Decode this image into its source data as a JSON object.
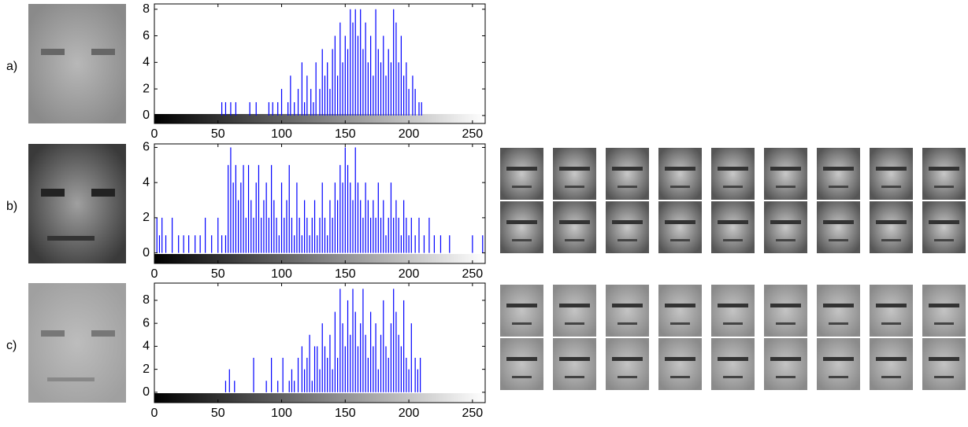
{
  "chart_data": [
    {
      "type": "bar",
      "panel_label": "a)",
      "color": "#0000ff",
      "x": [
        53,
        56,
        60,
        64,
        75,
        80,
        90,
        93,
        97,
        100,
        105,
        107,
        110,
        113,
        116,
        118,
        120,
        123,
        125,
        127,
        130,
        132,
        134,
        136,
        138,
        140,
        142,
        144,
        146,
        148,
        150,
        152,
        154,
        156,
        158,
        160,
        162,
        164,
        166,
        168,
        170,
        172,
        174,
        176,
        178,
        180,
        182,
        184,
        186,
        188,
        190,
        192,
        194,
        196,
        198,
        200,
        203,
        205,
        208,
        210
      ],
      "values": [
        1,
        1,
        1,
        1,
        1,
        1,
        1,
        1,
        1,
        2,
        1,
        3,
        1,
        2,
        4,
        1,
        3,
        2,
        1,
        4,
        2,
        5,
        3,
        4,
        2,
        5,
        6,
        3,
        7,
        4,
        6,
        5,
        8,
        7,
        8,
        6,
        8,
        5,
        7,
        4,
        6,
        3,
        8,
        5,
        4,
        6,
        3,
        5,
        4,
        8,
        7,
        4,
        6,
        3,
        4,
        2,
        3,
        2,
        1,
        1
      ],
      "xlim": [
        0,
        260
      ],
      "ylim": [
        -0.6,
        8.4
      ],
      "xticks": [
        0,
        50,
        100,
        150,
        200,
        250
      ],
      "yticks": [
        0,
        2,
        4,
        6,
        8
      ]
    },
    {
      "type": "bar",
      "panel_label": "b)",
      "color": "#0000ff",
      "x": [
        2,
        4,
        6,
        9,
        14,
        19,
        23,
        27,
        32,
        36,
        40,
        45,
        50,
        53,
        56,
        58,
        60,
        62,
        64,
        66,
        68,
        70,
        72,
        74,
        76,
        78,
        80,
        82,
        84,
        86,
        88,
        90,
        92,
        94,
        96,
        98,
        100,
        102,
        104,
        106,
        108,
        110,
        112,
        114,
        116,
        118,
        120,
        122,
        124,
        126,
        128,
        130,
        132,
        134,
        136,
        138,
        140,
        142,
        144,
        146,
        148,
        150,
        152,
        154,
        156,
        158,
        160,
        162,
        164,
        166,
        168,
        170,
        172,
        174,
        176,
        178,
        180,
        182,
        184,
        186,
        188,
        190,
        192,
        194,
        196,
        198,
        200,
        202,
        205,
        208,
        212,
        216,
        220,
        225,
        232,
        250,
        258
      ],
      "values": [
        2,
        1,
        2,
        1,
        2,
        1,
        1,
        1,
        1,
        1,
        2,
        1,
        2,
        1,
        1,
        5,
        6,
        4,
        5,
        3,
        4,
        5,
        2,
        5,
        3,
        2,
        4,
        5,
        2,
        3,
        4,
        2,
        5,
        3,
        2,
        1,
        4,
        2,
        3,
        5,
        2,
        1,
        4,
        2,
        1,
        3,
        2,
        1,
        2,
        3,
        1,
        2,
        4,
        2,
        1,
        3,
        2,
        4,
        3,
        5,
        4,
        6,
        5,
        4,
        3,
        6,
        4,
        3,
        2,
        4,
        3,
        2,
        3,
        2,
        4,
        2,
        3,
        1,
        2,
        4,
        2,
        3,
        2,
        1,
        3,
        2,
        1,
        2,
        1,
        2,
        1,
        2,
        1,
        1,
        1,
        1,
        1
      ],
      "xlim": [
        0,
        260
      ],
      "ylim": [
        -0.6,
        6.2
      ],
      "xticks": [
        0,
        50,
        100,
        150,
        200,
        250
      ],
      "yticks": [
        0,
        2,
        4,
        6
      ]
    },
    {
      "type": "bar",
      "panel_label": "c)",
      "color": "#0000ff",
      "x": [
        56,
        59,
        63,
        78,
        88,
        92,
        97,
        101,
        106,
        108,
        110,
        113,
        116,
        118,
        120,
        122,
        124,
        126,
        128,
        130,
        132,
        134,
        136,
        138,
        140,
        142,
        144,
        146,
        148,
        150,
        152,
        154,
        156,
        158,
        160,
        162,
        164,
        166,
        168,
        170,
        172,
        174,
        176,
        178,
        180,
        182,
        184,
        186,
        188,
        190,
        192,
        194,
        196,
        198,
        200,
        202,
        205,
        207,
        209
      ],
      "values": [
        1,
        2,
        1,
        3,
        1,
        3,
        1,
        3,
        1,
        2,
        1,
        3,
        4,
        2,
        3,
        5,
        1,
        4,
        4,
        2,
        6,
        4,
        3,
        5,
        2,
        7,
        3,
        9,
        6,
        4,
        8,
        5,
        9,
        7,
        4,
        6,
        9,
        5,
        3,
        7,
        4,
        6,
        2,
        5,
        8,
        4,
        3,
        6,
        9,
        7,
        5,
        4,
        8,
        3,
        2,
        6,
        3,
        2,
        3
      ],
      "xlim": [
        0,
        260
      ],
      "ylim": [
        -0.9,
        9.5
      ],
      "xticks": [
        0,
        50,
        100,
        150,
        200,
        250
      ],
      "yticks": [
        0,
        2,
        4,
        6,
        8
      ]
    }
  ]
}
